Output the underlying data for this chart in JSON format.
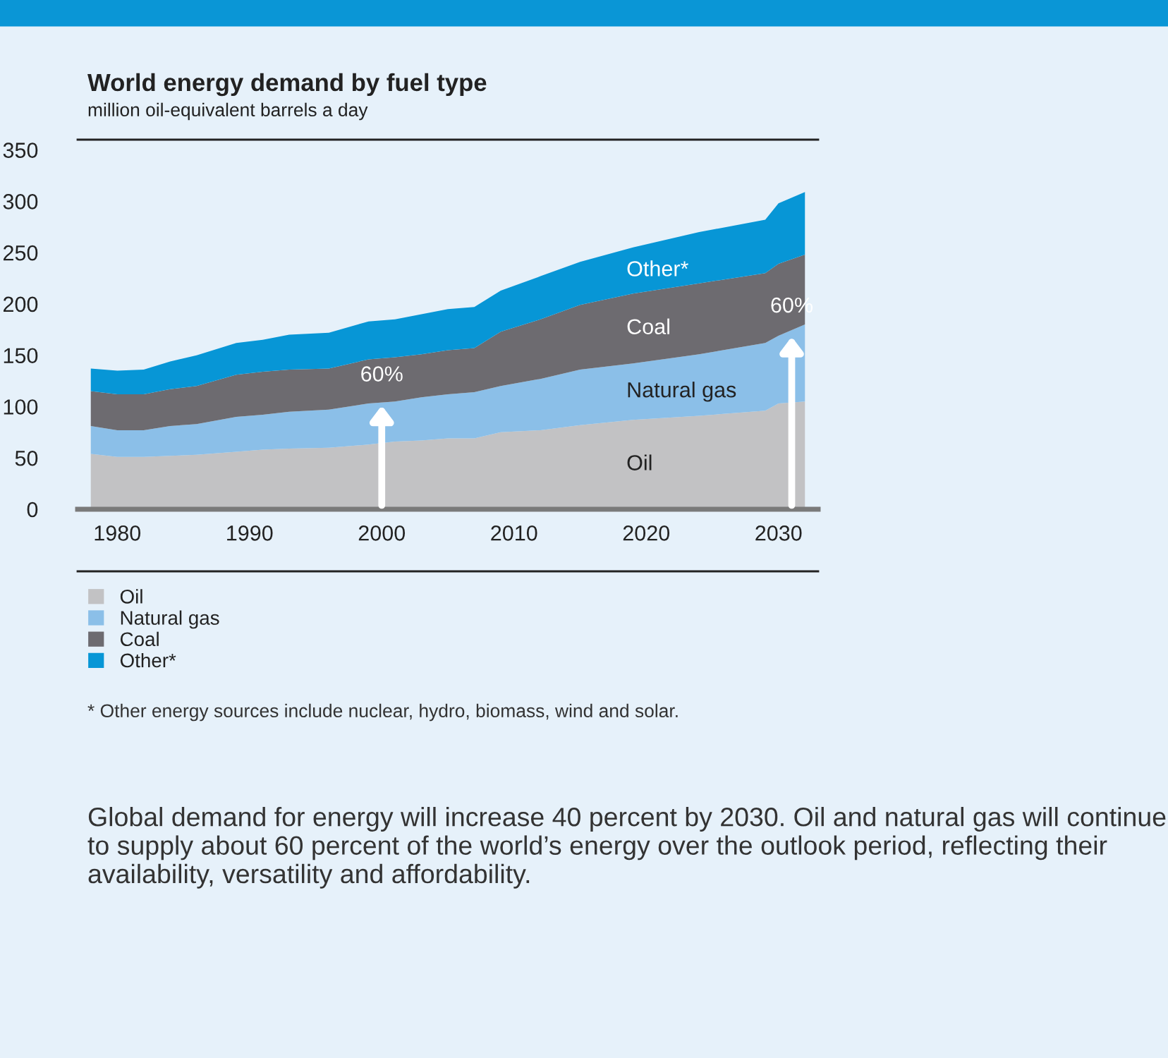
{
  "chart_data": {
    "type": "area",
    "stacked": true,
    "title": "World energy demand by fuel type",
    "subtitle": "million oil-equivalent barrels a day",
    "x": [
      1978,
      1980,
      1982,
      1984,
      1986,
      1989,
      1991,
      1993,
      1996,
      1999,
      2001,
      2003,
      2005,
      2007,
      2009,
      2012,
      2015,
      2019,
      2024,
      2029,
      2030,
      2032
    ],
    "series": [
      {
        "name": "Oil",
        "color": "#c2c2c4",
        "values": [
          54,
          51,
          51,
          52,
          53,
          56,
          58,
          59,
          60,
          63,
          66,
          67,
          69,
          69,
          75,
          77,
          82,
          87,
          91,
          96,
          103,
          105
        ]
      },
      {
        "name": "Natural gas",
        "color": "#8bbfe8",
        "values": [
          27,
          26,
          26,
          29,
          30,
          34,
          34,
          36,
          37,
          40,
          39,
          42,
          43,
          45,
          45,
          50,
          54,
          55,
          60,
          66,
          66,
          75
        ]
      },
      {
        "name": "Coal",
        "color": "#6d6b70",
        "values": [
          34,
          35,
          35,
          36,
          37,
          41,
          42,
          41,
          40,
          43,
          43,
          42,
          43,
          43,
          53,
          58,
          63,
          68,
          69,
          68,
          70,
          68
        ]
      },
      {
        "name": "Other*",
        "color": "#0796d6",
        "values": [
          22,
          23,
          24,
          27,
          30,
          31,
          31,
          34,
          35,
          37,
          37,
          39,
          40,
          40,
          40,
          42,
          42,
          45,
          50,
          52,
          59,
          61
        ]
      }
    ],
    "xlim": [
      1977,
      2033
    ],
    "xticks": [
      1980,
      1990,
      2000,
      2010,
      2020,
      2030
    ],
    "ylim": [
      0,
      360
    ],
    "yticks": [
      0,
      50,
      100,
      150,
      200,
      250,
      300,
      350
    ],
    "grid": false,
    "legend": "bottom",
    "annotations": [
      {
        "text": "60%",
        "x": 2000,
        "y": 105
      },
      {
        "text": "60%",
        "x": 2031,
        "y": 172
      },
      "* Other energy sources include nuclear, hydro, biomass, wind and solar.",
      "Global demand for energy will increase 40 percent by 2030. Oil and natural gas will continue to supply about 60 percent of the world’s energy over the outlook period, reflecting their availability, versatility and affordability."
    ]
  }
}
